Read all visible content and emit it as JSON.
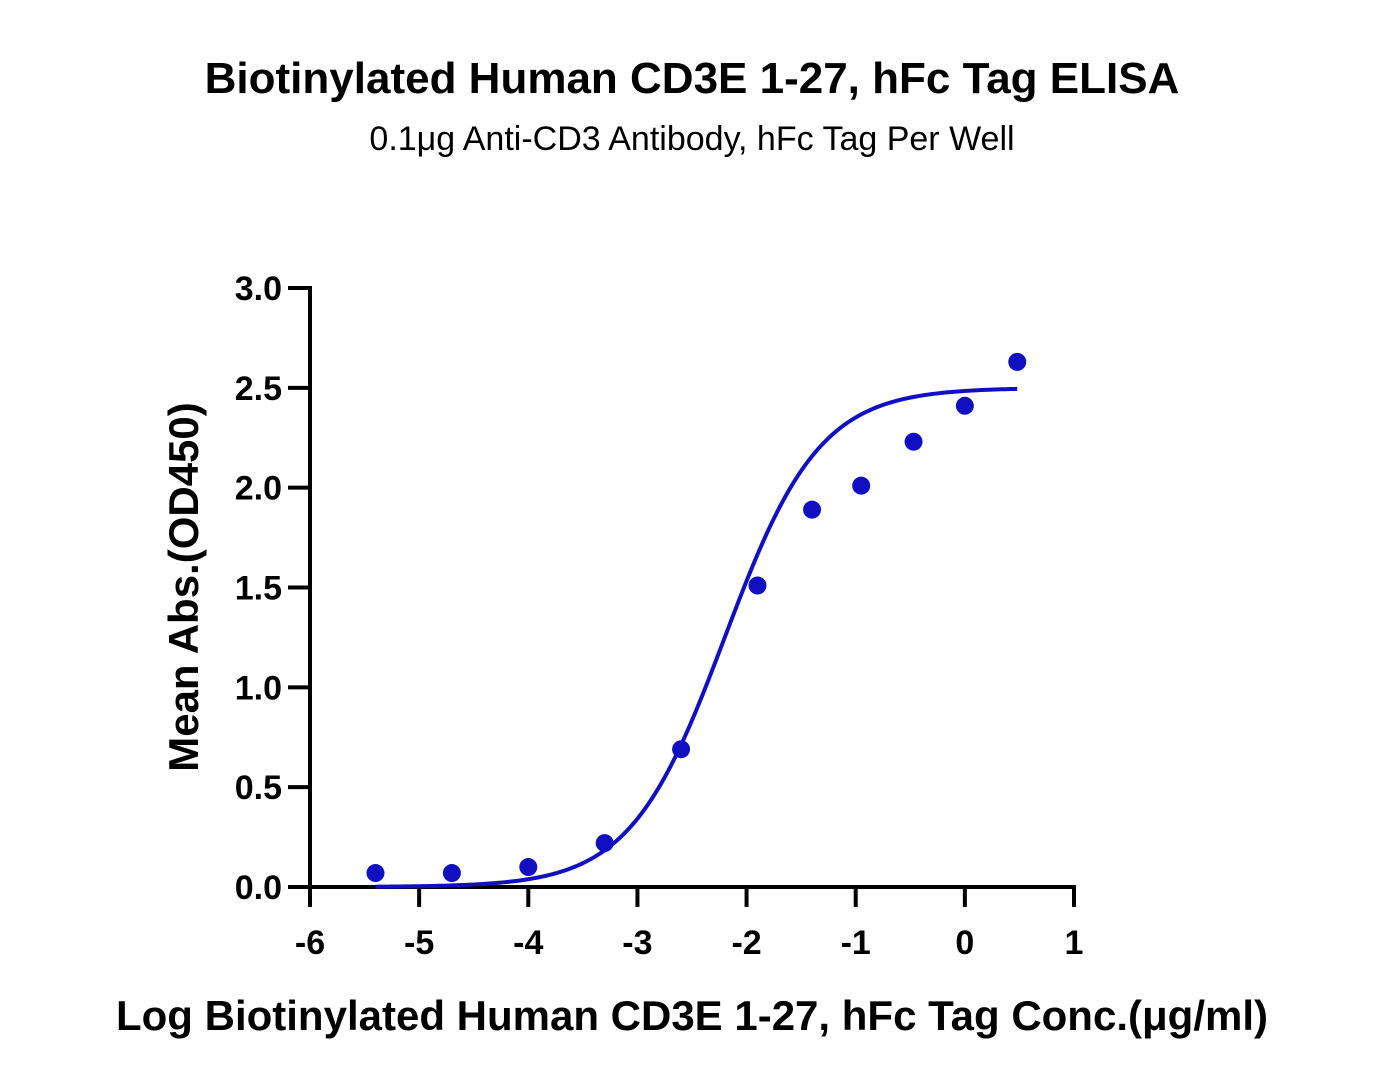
{
  "chart_data": {
    "type": "scatter",
    "title": "Biotinylated Human CD3E 1-27, hFc Tag ELISA",
    "subtitle": "0.1μg Anti-CD3 Antibody, hFc Tag Per Well",
    "xlabel": "Log Biotinylated Human CD3E 1-27, hFc Tag Conc.(μg/ml)",
    "ylabel": "Mean Abs.(OD450)",
    "xlim": [
      -6,
      1
    ],
    "ylim": [
      0,
      3.0
    ],
    "x_ticks": [
      -6,
      -5,
      -4,
      -3,
      -2,
      -1,
      0,
      1
    ],
    "x_tick_labels": [
      "-6",
      "-5",
      "-4",
      "-3",
      "-2",
      "-1",
      "0",
      "1"
    ],
    "y_ticks": [
      0,
      0.5,
      1.0,
      1.5,
      2.0,
      2.5,
      3.0
    ],
    "y_tick_labels": [
      "0.0",
      "0.5",
      "1.0",
      "1.5",
      "2.0",
      "2.5",
      "3.0"
    ],
    "grid": false,
    "color": "#1010c0",
    "series": [
      {
        "x": [
          -5.4,
          -4.7,
          -4.0,
          -3.3,
          -2.6,
          -1.9,
          -1.4,
          -0.95,
          -0.47,
          0.0,
          0.48
        ],
        "y": [
          0.07,
          0.07,
          0.1,
          0.22,
          0.69,
          1.51,
          1.89,
          2.01,
          2.23,
          2.41,
          2.63
        ]
      }
    ],
    "fit_curve": {
      "type": "4PL",
      "bottom": 0.0,
      "top": 2.5,
      "log_ec50": -2.2,
      "hill_slope": 1.0,
      "x_range": [
        -5.4,
        0.48
      ]
    }
  }
}
